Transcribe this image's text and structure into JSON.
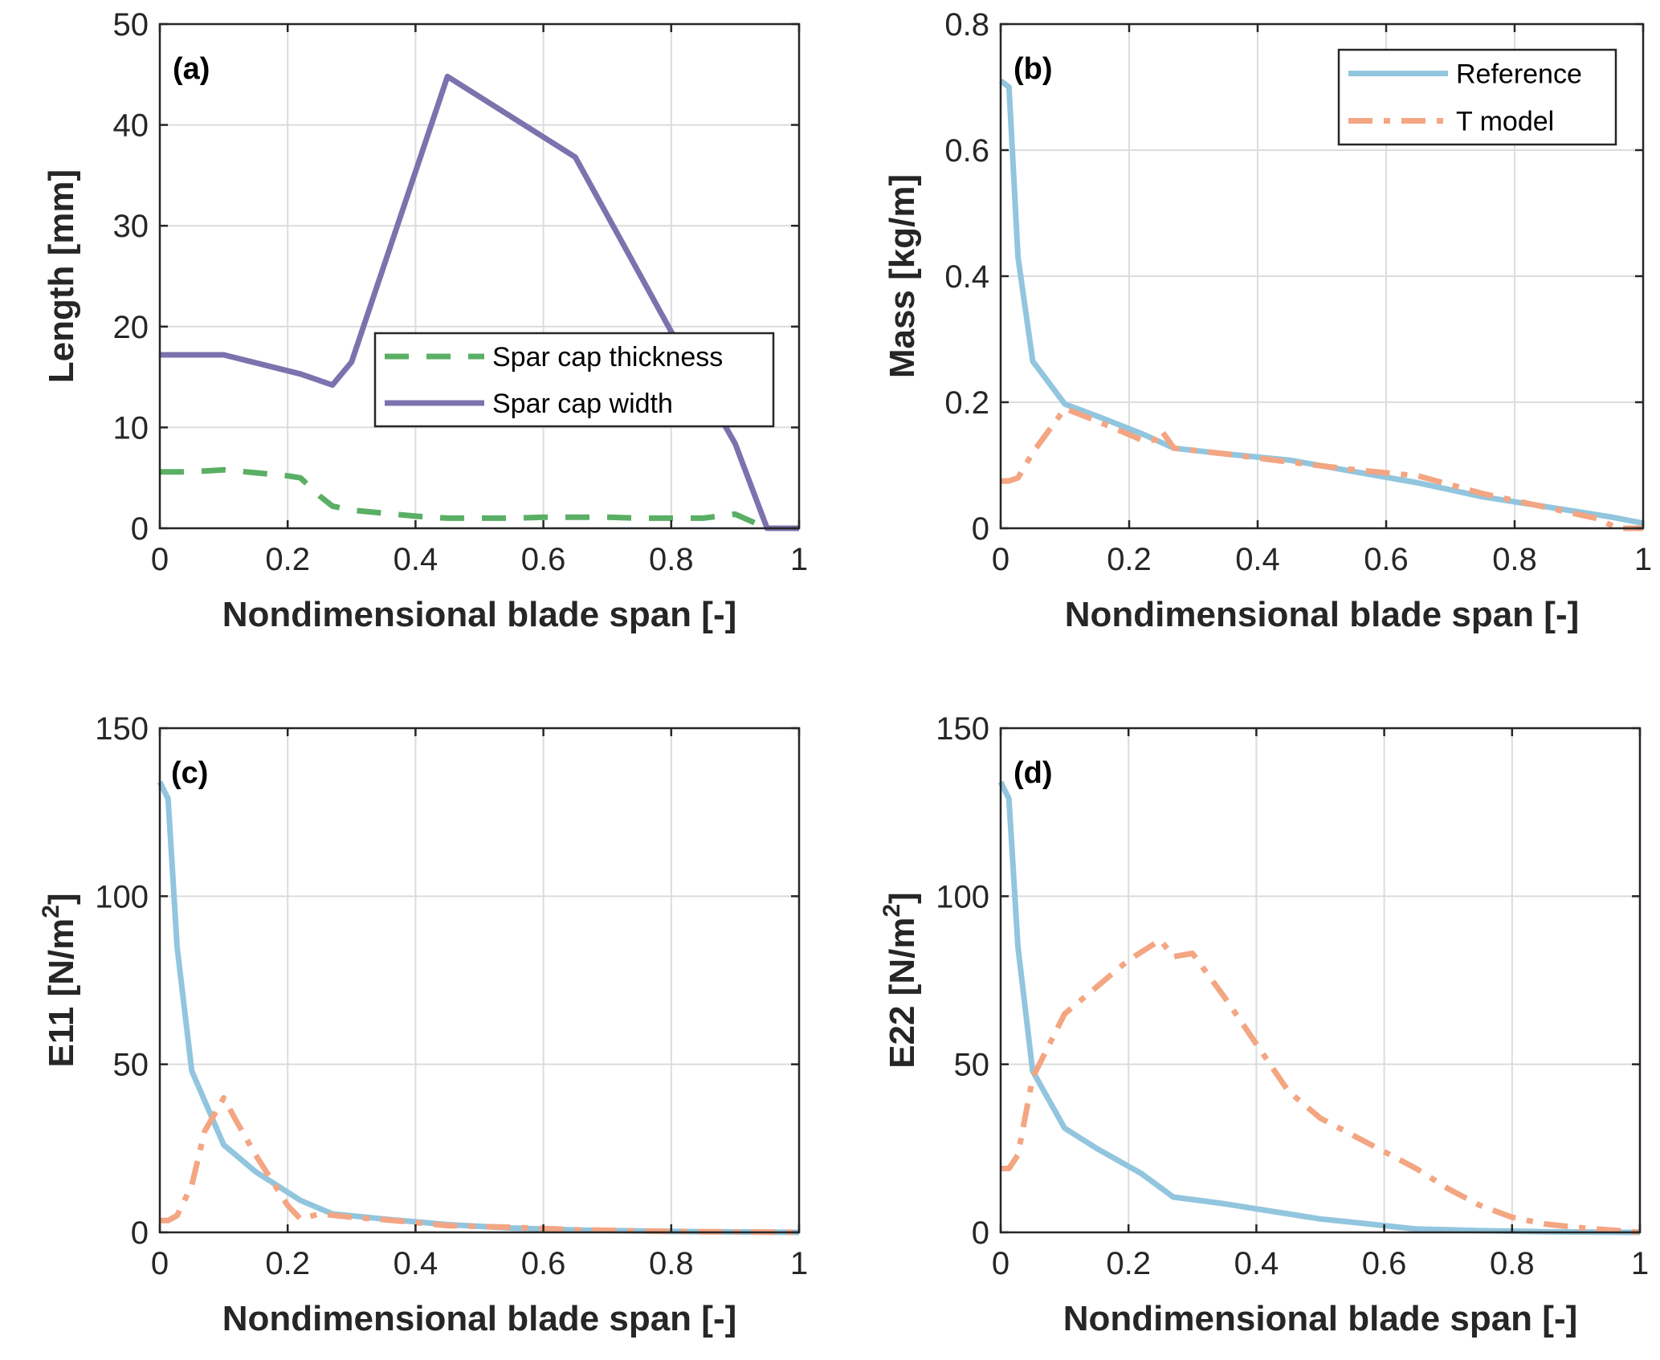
{
  "figure": {
    "layout": "2x2 grid of line charts"
  },
  "chart_data": [
    {
      "id": "a",
      "type": "line",
      "panel_label": "(a)",
      "title": "",
      "xlabel": "Nondimensional blade span [-]",
      "ylabel": "Length [mm]",
      "ylabel_superscript": "",
      "xlim": [
        0,
        1
      ],
      "ylim": [
        0,
        50
      ],
      "xticks": [
        0,
        0.2,
        0.4,
        0.6,
        0.8,
        1
      ],
      "xtick_labels": [
        "0",
        "0.2",
        "0.4",
        "0.6",
        "0.8",
        "1"
      ],
      "yticks": [
        0,
        10,
        20,
        30,
        40,
        50
      ],
      "ytick_labels": [
        "0",
        "10",
        "20",
        "30",
        "40",
        "50"
      ],
      "grid": true,
      "legend_position": "center-right",
      "series": [
        {
          "name": "Spar cap thickness",
          "color": "#5aaf64",
          "style": "dashed",
          "x": [
            0,
            0.05,
            0.1,
            0.15,
            0.2,
            0.22,
            0.25,
            0.27,
            0.3,
            0.35,
            0.4,
            0.45,
            0.5,
            0.55,
            0.6,
            0.65,
            0.7,
            0.75,
            0.8,
            0.85,
            0.9,
            0.95,
            1
          ],
          "y": [
            5.6,
            5.6,
            5.8,
            5.5,
            5.2,
            5.0,
            3.2,
            2.2,
            1.8,
            1.5,
            1.2,
            1.0,
            1.0,
            1.0,
            1.1,
            1.1,
            1.1,
            1.0,
            1.0,
            1.0,
            1.4,
            0,
            0
          ]
        },
        {
          "name": "Spar cap width",
          "color": "#7d72ae",
          "style": "solid",
          "x": [
            0,
            0.1,
            0.22,
            0.27,
            0.3,
            0.45,
            0.65,
            0.8,
            0.9,
            0.95,
            1
          ],
          "y": [
            17.2,
            17.2,
            15.3,
            14.2,
            16.5,
            44.8,
            36.8,
            19.5,
            8.4,
            0,
            0
          ]
        }
      ]
    },
    {
      "id": "b",
      "type": "line",
      "panel_label": "(b)",
      "title": "",
      "xlabel": "Nondimensional blade span [-]",
      "ylabel": "Mass [kg/m]",
      "ylabel_superscript": "",
      "xlim": [
        0,
        1
      ],
      "ylim": [
        0,
        0.8
      ],
      "xticks": [
        0,
        0.2,
        0.4,
        0.6,
        0.8,
        1
      ],
      "xtick_labels": [
        "0",
        "0.2",
        "0.4",
        "0.6",
        "0.8",
        "1"
      ],
      "yticks": [
        0,
        0.2,
        0.4,
        0.6,
        0.8
      ],
      "ytick_labels": [
        "0",
        "0.2",
        "0.4",
        "0.6",
        "0.8"
      ],
      "grid": true,
      "legend_position": "top-right",
      "series": [
        {
          "name": "Reference",
          "color": "#92c5de",
          "style": "solid",
          "x": [
            0,
            0.013,
            0.027,
            0.05,
            0.1,
            0.15,
            0.22,
            0.27,
            0.35,
            0.45,
            0.55,
            0.65,
            0.75,
            0.85,
            0.95,
            1
          ],
          "y": [
            0.71,
            0.7,
            0.43,
            0.265,
            0.197,
            0.178,
            0.15,
            0.127,
            0.118,
            0.108,
            0.09,
            0.072,
            0.05,
            0.034,
            0.018,
            0.008
          ]
        },
        {
          "name": "T model",
          "color": "#f4a582",
          "style": "dashdot",
          "x": [
            0,
            0.013,
            0.027,
            0.05,
            0.1,
            0.15,
            0.22,
            0.24,
            0.25,
            0.27,
            0.35,
            0.45,
            0.55,
            0.65,
            0.75,
            0.85,
            0.93,
            0.96,
            1
          ],
          "y": [
            0.075,
            0.075,
            0.08,
            0.12,
            0.19,
            0.17,
            0.14,
            0.14,
            0.155,
            0.127,
            0.118,
            0.105,
            0.093,
            0.083,
            0.055,
            0.033,
            0.015,
            0.0,
            0.0
          ]
        }
      ]
    },
    {
      "id": "c",
      "type": "line",
      "panel_label": "(c)",
      "title": "",
      "xlabel": "Nondimensional blade span [-]",
      "ylabel": "E11 [N/m",
      "ylabel_superscript": "2",
      "ylabel_suffix": "]",
      "xlim": [
        0,
        1
      ],
      "ylim": [
        0,
        150
      ],
      "xticks": [
        0,
        0.2,
        0.4,
        0.6,
        0.8,
        1
      ],
      "xtick_labels": [
        "0",
        "0.2",
        "0.4",
        "0.6",
        "0.8",
        "1"
      ],
      "yticks": [
        0,
        50,
        100,
        150
      ],
      "ytick_labels": [
        "0",
        "50",
        "100",
        "150"
      ],
      "grid": true,
      "legend_position": "none",
      "series": [
        {
          "name": "Reference",
          "color": "#92c5de",
          "style": "solid",
          "x": [
            0,
            0.013,
            0.027,
            0.05,
            0.1,
            0.15,
            0.22,
            0.27,
            0.35,
            0.45,
            0.55,
            0.65,
            0.75,
            0.85,
            1
          ],
          "y": [
            134,
            129,
            85,
            48,
            26,
            18,
            9.5,
            5.5,
            4.0,
            2.3,
            1.3,
            0.7,
            0.4,
            0.2,
            0
          ]
        },
        {
          "name": "T model",
          "color": "#f4a582",
          "style": "dashdot",
          "x": [
            0,
            0.013,
            0.027,
            0.05,
            0.07,
            0.1,
            0.12,
            0.15,
            0.2,
            0.22,
            0.25,
            0.3,
            0.35,
            0.45,
            0.55,
            0.65,
            0.75,
            0.85,
            1
          ],
          "y": [
            3.5,
            3.5,
            5,
            14,
            30,
            40,
            33,
            23,
            8,
            4,
            5.5,
            4.5,
            3.8,
            2.0,
            1.5,
            0.8,
            0.4,
            0.2,
            0
          ]
        }
      ]
    },
    {
      "id": "d",
      "type": "line",
      "panel_label": "(d)",
      "title": "",
      "xlabel": "Nondimensional blade span [-]",
      "ylabel": "E22 [N/m",
      "ylabel_superscript": "2",
      "ylabel_suffix": "]",
      "xlim": [
        0,
        1
      ],
      "ylim": [
        0,
        150
      ],
      "xticks": [
        0,
        0.2,
        0.4,
        0.6,
        0.8,
        1
      ],
      "xtick_labels": [
        "0",
        "0.2",
        "0.4",
        "0.6",
        "0.8",
        "1"
      ],
      "yticks": [
        0,
        50,
        100,
        150
      ],
      "ytick_labels": [
        "0",
        "50",
        "100",
        "150"
      ],
      "grid": true,
      "legend_position": "none",
      "series": [
        {
          "name": "Reference",
          "color": "#92c5de",
          "style": "solid",
          "x": [
            0,
            0.013,
            0.027,
            0.05,
            0.1,
            0.15,
            0.22,
            0.27,
            0.35,
            0.45,
            0.5,
            0.55,
            0.65,
            0.75,
            0.85,
            1
          ],
          "y": [
            134,
            129,
            85,
            48,
            31,
            25,
            17.5,
            10.5,
            8.5,
            5.5,
            4.0,
            3.0,
            1.0,
            0.5,
            0.2,
            0
          ]
        },
        {
          "name": "T model",
          "color": "#f4a582",
          "style": "dashdot",
          "x": [
            0,
            0.013,
            0.027,
            0.05,
            0.1,
            0.15,
            0.2,
            0.25,
            0.27,
            0.3,
            0.35,
            0.4,
            0.45,
            0.5,
            0.55,
            0.6,
            0.65,
            0.7,
            0.75,
            0.8,
            0.85,
            0.9,
            1
          ],
          "y": [
            19,
            19,
            23,
            46,
            65,
            73,
            81,
            87,
            82,
            83,
            70,
            56,
            42,
            34,
            29,
            24,
            19,
            13,
            8,
            4.5,
            2.5,
            1.5,
            0
          ]
        }
      ]
    }
  ]
}
